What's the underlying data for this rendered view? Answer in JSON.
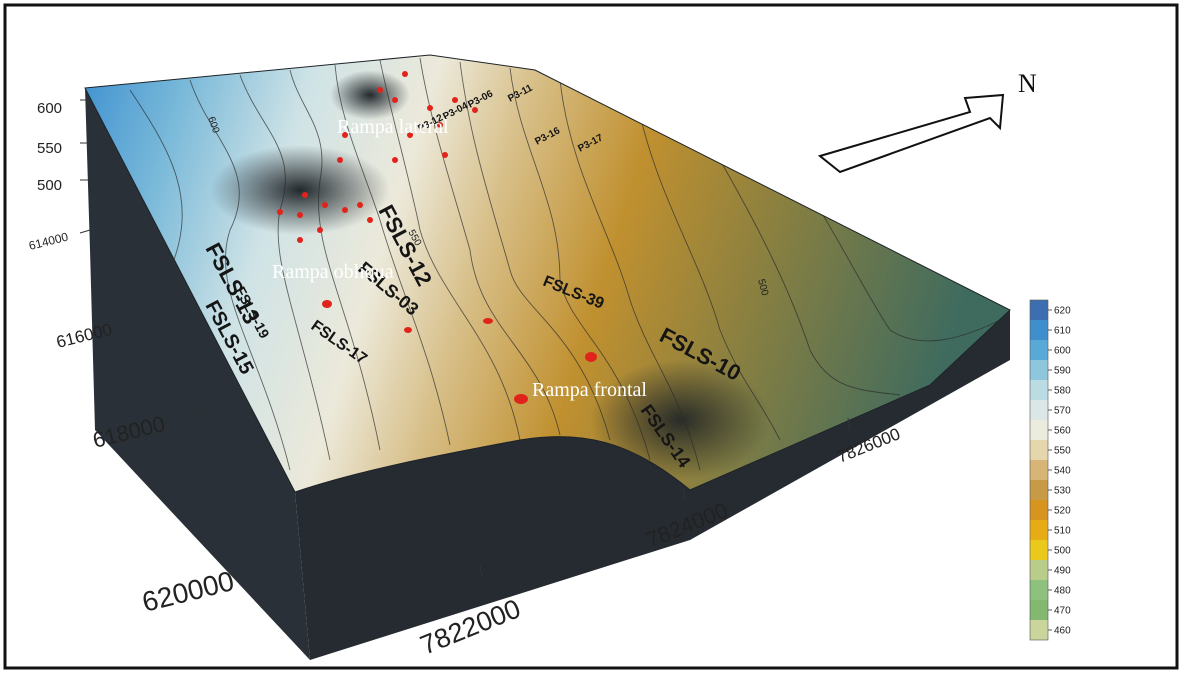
{
  "map": {
    "annotations": {
      "lateral": "Rampa lateral",
      "obliqua": "Rampa obliqua",
      "frontal": "Rampa frontal"
    },
    "north_label": "N",
    "elevation_ticks": [
      "600",
      "550",
      "500"
    ],
    "easting_ticks": [
      "614000",
      "616000",
      "618000",
      "620000"
    ],
    "northing_ticks": [
      "7822000",
      "7824000",
      "7826000"
    ],
    "contour_labels": [
      "600",
      "550",
      "500"
    ],
    "well_labels": [
      "FSLS-12",
      "FSLS-03",
      "FSLS-39",
      "FSLS-10",
      "FSLS-17",
      "FSLS-13",
      "FSLS-19",
      "FSLS-15",
      "FSLS-14",
      "P3-11",
      "P3-16",
      "P3-17",
      "P3-06",
      "P3-04",
      "P3-12"
    ],
    "colorbar": {
      "ticks": [
        "620",
        "610",
        "600",
        "590",
        "580",
        "570",
        "560",
        "550",
        "540",
        "530",
        "520",
        "510",
        "500",
        "490",
        "480",
        "470",
        "460"
      ],
      "colors": [
        "#3d6fb0",
        "#3f8fcf",
        "#59a9d7",
        "#8ec6dc",
        "#bcdce3",
        "#dbe7e7",
        "#ececde",
        "#e6d6ad",
        "#d6b576",
        "#c79a46",
        "#d7941f",
        "#e6ac16",
        "#eac91c",
        "#b9cc8a",
        "#8ec07e",
        "#83b86f",
        "#c9d59a"
      ]
    }
  }
}
